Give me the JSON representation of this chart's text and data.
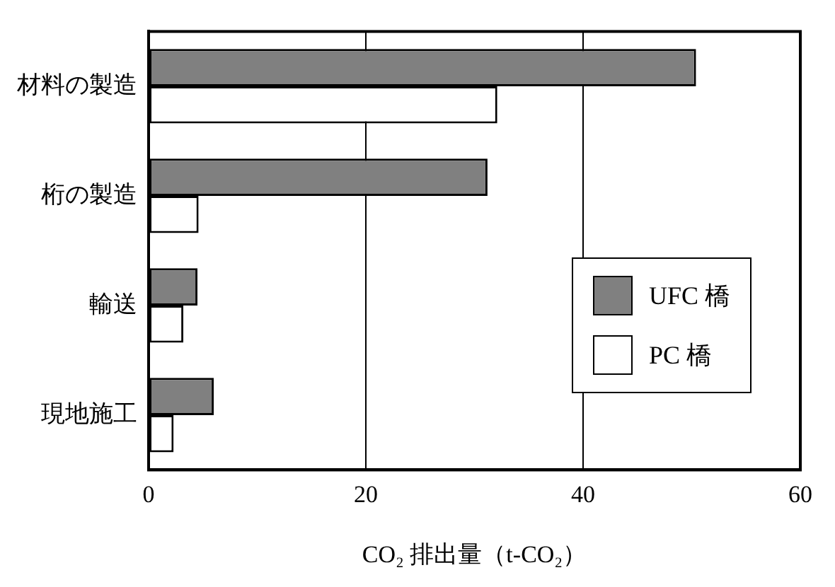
{
  "chart_data": {
    "type": "bar",
    "orientation": "horizontal",
    "xlabel": "CO₂ 排出量（t-CO₂）",
    "categories": [
      "材料の製造",
      "桁の製造",
      "輸送",
      "現地施工"
    ],
    "series": [
      {
        "name": "UFC 橋",
        "color": "#808080",
        "values": [
          50.4,
          31.2,
          4.5,
          6.0
        ]
      },
      {
        "name": "PC 橋",
        "color": "#ffffff",
        "values": [
          32.1,
          4.6,
          3.2,
          2.3
        ]
      }
    ],
    "xlim": [
      0,
      60
    ],
    "xticks": [
      0,
      20,
      40,
      60
    ],
    "grid": "x",
    "legend": "bottom right"
  }
}
